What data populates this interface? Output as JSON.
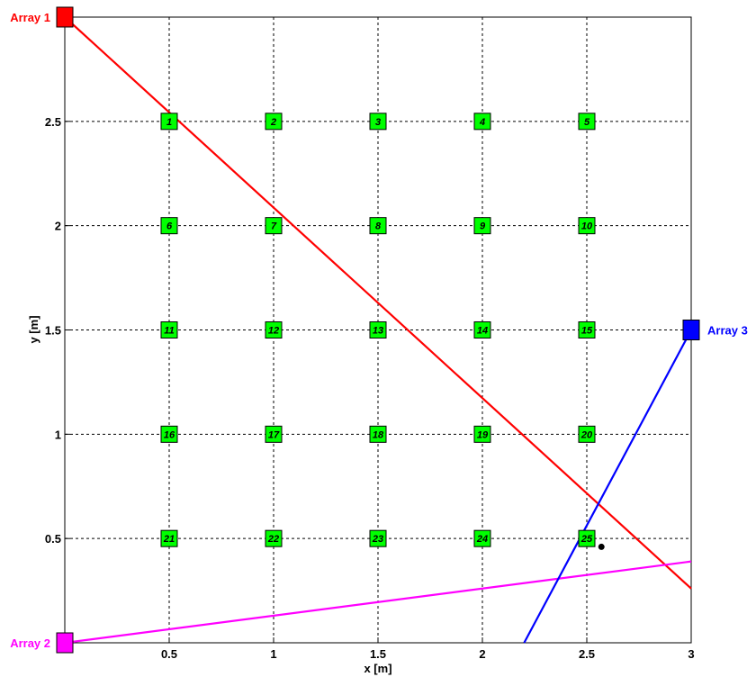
{
  "chart_data": {
    "type": "scatter",
    "title": "",
    "xlabel": "x [m]",
    "ylabel": "y [m]",
    "xlim": [
      0,
      3
    ],
    "ylim": [
      0,
      3
    ],
    "grid": true,
    "x_ticks": [
      0.5,
      1,
      1.5,
      2,
      2.5,
      3
    ],
    "x_tick_labels": [
      "0.5",
      "1",
      "1.5",
      "2",
      "2.5",
      "3"
    ],
    "y_ticks": [
      0.5,
      1,
      1.5,
      2,
      2.5
    ],
    "y_tick_labels": [
      "0.5",
      "1",
      "1.5",
      "2",
      "2.5"
    ],
    "grid_points": [
      {
        "label": "1",
        "x": 0.5,
        "y": 2.5
      },
      {
        "label": "2",
        "x": 1,
        "y": 2.5
      },
      {
        "label": "3",
        "x": 1.5,
        "y": 2.5
      },
      {
        "label": "4",
        "x": 2,
        "y": 2.5
      },
      {
        "label": "5",
        "x": 2.5,
        "y": 2.5
      },
      {
        "label": "6",
        "x": 0.5,
        "y": 2
      },
      {
        "label": "7",
        "x": 1,
        "y": 2
      },
      {
        "label": "8",
        "x": 1.5,
        "y": 2
      },
      {
        "label": "9",
        "x": 2,
        "y": 2
      },
      {
        "label": "10",
        "x": 2.5,
        "y": 2
      },
      {
        "label": "11",
        "x": 0.5,
        "y": 1.5
      },
      {
        "label": "12",
        "x": 1,
        "y": 1.5
      },
      {
        "label": "13",
        "x": 1.5,
        "y": 1.5
      },
      {
        "label": "14",
        "x": 2,
        "y": 1.5
      },
      {
        "label": "15",
        "x": 2.5,
        "y": 1.5
      },
      {
        "label": "16",
        "x": 0.5,
        "y": 1
      },
      {
        "label": "17",
        "x": 1,
        "y": 1
      },
      {
        "label": "18",
        "x": 1.5,
        "y": 1
      },
      {
        "label": "19",
        "x": 2,
        "y": 1
      },
      {
        "label": "20",
        "x": 2.5,
        "y": 1
      },
      {
        "label": "21",
        "x": 0.5,
        "y": 0.5
      },
      {
        "label": "22",
        "x": 1,
        "y": 0.5
      },
      {
        "label": "23",
        "x": 1.5,
        "y": 0.5
      },
      {
        "label": "24",
        "x": 2,
        "y": 0.5
      },
      {
        "label": "25",
        "x": 2.5,
        "y": 0.5
      }
    ],
    "arrays": [
      {
        "label": "Array 1",
        "x": 0,
        "y": 3,
        "color": "#ff0000",
        "label_side": "left"
      },
      {
        "label": "Array 2",
        "x": 0,
        "y": 0,
        "color": "#ff00ff",
        "label_side": "left"
      },
      {
        "label": "Array 3",
        "x": 3,
        "y": 1.5,
        "color": "#0000ff",
        "label_side": "right"
      }
    ],
    "bearing_lines": [
      {
        "array": "Array 1",
        "color": "#ff0000",
        "x": [
          0,
          3
        ],
        "y": [
          3,
          0.26
        ]
      },
      {
        "array": "Array 2",
        "color": "#ff00ff",
        "x": [
          0,
          3
        ],
        "y": [
          0,
          0.39
        ]
      },
      {
        "array": "Array 3",
        "color": "#0000ff",
        "x": [
          3,
          2.2
        ],
        "y": [
          1.5,
          0
        ]
      }
    ],
    "estimated_point": {
      "x": 2.57,
      "y": 0.46,
      "color": "#000000"
    },
    "grid_marker_color": "#00ff00"
  }
}
